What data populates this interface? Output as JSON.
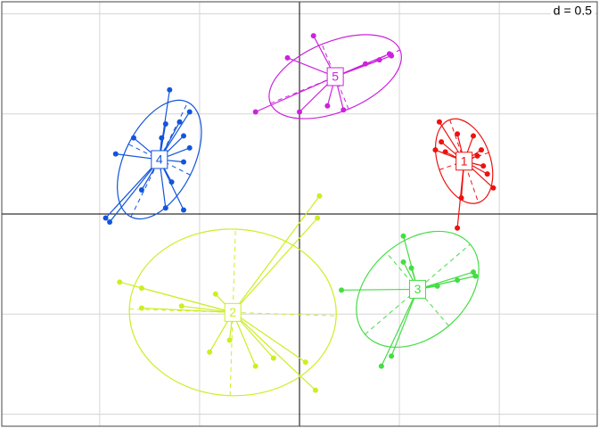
{
  "chart_data": {
    "type": "scatter",
    "grid_label": "d = 0.5",
    "xlim": [
      -1.49,
      1.49
    ],
    "ylim": [
      -1.06,
      1.06
    ],
    "xgrid": [
      -1,
      -0.5,
      0.5,
      1
    ],
    "ygrid": [
      -1,
      -0.5,
      0.5,
      1
    ],
    "series": [
      {
        "name": "1",
        "color": "#ee1111",
        "x": [
          0.7,
          0.71,
          0.68,
          0.73,
          0.79,
          0.87,
          0.91,
          0.89,
          0.92,
          0.94,
          0.97,
          0.81,
          0.79
        ],
        "y": [
          0.46,
          0.36,
          0.32,
          0.31,
          0.4,
          0.39,
          0.32,
          0.29,
          0.24,
          0.2,
          0.13,
          0.08,
          -0.07
        ]
      },
      {
        "name": "2",
        "color": "#ccee22",
        "x": [
          0.1,
          0.09,
          -0.9,
          -0.79,
          -0.79,
          -0.59,
          -0.42,
          -0.35,
          -0.45,
          -0.22,
          -0.13,
          0.03,
          0.08
        ],
        "y": [
          0.09,
          -0.02,
          -0.34,
          -0.37,
          -0.47,
          -0.46,
          -0.4,
          -0.63,
          -0.69,
          -0.76,
          -0.72,
          -0.74,
          -0.88
        ]
      },
      {
        "name": "3",
        "color": "#44dd44",
        "x": [
          0.52,
          0.52,
          0.56,
          0.21,
          0.87,
          0.88,
          0.79,
          0.69,
          0.41,
          0.46
        ],
        "y": [
          -0.11,
          -0.24,
          -0.27,
          -0.38,
          -0.29,
          -0.31,
          -0.33,
          -0.36,
          -0.76,
          -0.71
        ]
      },
      {
        "name": "4",
        "color": "#1155dd",
        "x": [
          -0.65,
          -0.55,
          -0.6,
          -0.67,
          -0.83,
          -0.69,
          -0.58,
          -0.55,
          -0.92,
          -0.58,
          -0.64,
          -0.79,
          -0.67,
          -0.58,
          -0.97,
          -0.95
        ],
        "y": [
          0.62,
          0.51,
          0.46,
          0.45,
          0.38,
          0.38,
          0.39,
          0.33,
          0.3,
          0.26,
          0.16,
          0.12,
          0.03,
          0.02,
          -0.02,
          -0.04
        ]
      },
      {
        "name": "5",
        "color": "#cc22dd",
        "x": [
          0.07,
          -0.06,
          -0.22,
          0.0,
          0.14,
          0.22,
          0.45,
          0.46,
          0.33,
          0.4
        ],
        "y": [
          0.89,
          0.78,
          0.51,
          0.51,
          0.54,
          0.52,
          0.8,
          0.79,
          0.75,
          0.77
        ]
      }
    ]
  }
}
